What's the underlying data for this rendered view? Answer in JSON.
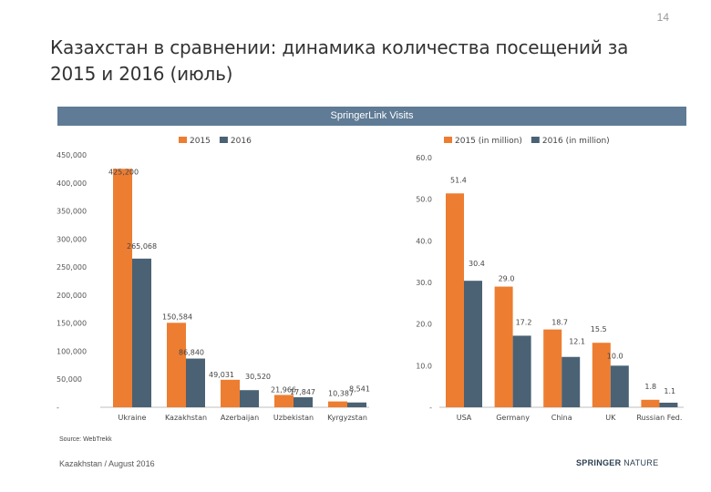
{
  "page_number": "14",
  "title_line1": "Казахстан в сравнении: динамика количества посещений за",
  "title_line2": "2015 и 2016 (июль)",
  "banner": "SpringerLink Visits",
  "colors": {
    "s2015": "#ed7d31",
    "s2016": "#4a6274",
    "banner": "#5f7b95"
  },
  "chart_data": [
    {
      "type": "bar",
      "categories": [
        "Ukraine",
        "Kazakhstan",
        "Azerbaijan",
        "Uzbekistan",
        "Kyrgyzstan"
      ],
      "series": [
        {
          "name": "2015",
          "values": [
            425200,
            150584,
            49031,
            21966,
            10387
          ],
          "labels": [
            "425,200",
            "150,584",
            "49,031",
            "21,966",
            "10,387"
          ]
        },
        {
          "name": "2016",
          "values": [
            265068,
            86840,
            30520,
            17847,
            8541
          ],
          "labels": [
            "265,068",
            "86,840",
            "30,520",
            "17,847",
            "8,541"
          ]
        }
      ],
      "y_ticks": [
        "450,000",
        "400,000",
        "350,000",
        "300,000",
        "250,000",
        "200,000",
        "150,000",
        "100,000",
        "50,000",
        "-"
      ],
      "ylim": [
        0,
        450000
      ]
    },
    {
      "type": "bar",
      "categories": [
        "USA",
        "Germany",
        "China",
        "UK",
        "Russian Fed."
      ],
      "series": [
        {
          "name": "2015 (in million)",
          "values": [
            51.4,
            29.0,
            18.7,
            15.5,
            1.8
          ],
          "labels": [
            "51.4",
            "29.0",
            "18.7",
            "15.5",
            "1.8"
          ]
        },
        {
          "name": "2016 (in million)",
          "values": [
            30.4,
            17.2,
            12.1,
            10.0,
            1.1
          ],
          "labels": [
            "30.4",
            "17.2",
            "12.1",
            "10.0",
            "1.1"
          ]
        }
      ],
      "y_ticks": [
        "60.0",
        "50.0",
        "40.0",
        "30.0",
        "20.0",
        "10.0",
        "-"
      ],
      "ylim": [
        0,
        60
      ]
    }
  ],
  "source": "Source: WebTrekk",
  "footer_left": "Kazakhstan / August 2016",
  "logo_bold": "SPRINGER",
  "logo_light": "NATURE"
}
